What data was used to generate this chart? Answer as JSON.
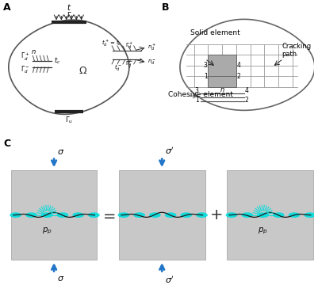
{
  "bg_color": "#ffffff",
  "panel_bg": "#c8c8c8",
  "blue_arrow": "#2176c8",
  "cyan_color": "#00dddd",
  "dark_line": "#333333",
  "label_A": "A",
  "label_B": "B",
  "label_C": "C"
}
